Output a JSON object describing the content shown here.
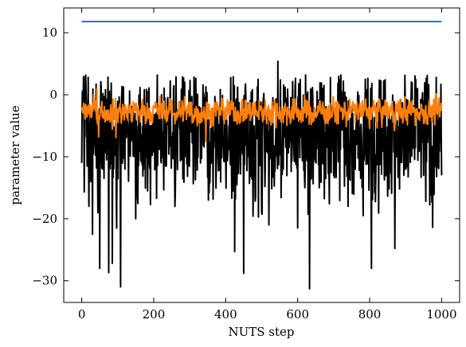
{
  "chart_data": {
    "type": "line",
    "title": "",
    "xlabel": "NUTS step",
    "ylabel": "parameter value",
    "xlim": [
      -50,
      1050
    ],
    "ylim": [
      -33.5,
      14
    ],
    "xticks": [
      0,
      200,
      400,
      600,
      800,
      1000
    ],
    "xtick_labels": [
      "0",
      "200",
      "400",
      "600",
      "800",
      "1000"
    ],
    "yticks": [
      -30,
      -20,
      -10,
      0,
      10
    ],
    "ytick_labels": [
      "−30",
      "−20",
      "−10",
      "0",
      "10"
    ],
    "grid": false,
    "legend": false,
    "series": [
      {
        "color": "#000000",
        "mean": -6,
        "approx_min": -31.3,
        "approx_max": 5.4,
        "points": [
          [
            0,
            -11
          ],
          [
            10,
            2.8
          ],
          [
            20,
            -18
          ],
          [
            25,
            -14
          ],
          [
            30,
            -22.5
          ],
          [
            35,
            -8
          ],
          [
            50,
            -28
          ],
          [
            75,
            -28.7
          ],
          [
            85,
            -27.2
          ],
          [
            95,
            -5
          ],
          [
            108,
            -31
          ],
          [
            120,
            -12
          ],
          [
            150,
            -20
          ],
          [
            175,
            -9
          ],
          [
            205,
            -10
          ],
          [
            230,
            -10
          ],
          [
            260,
            -16
          ],
          [
            330,
            -11
          ],
          [
            360,
            -11
          ],
          [
            400,
            -10
          ],
          [
            425,
            -25.3
          ],
          [
            450,
            -28.8
          ],
          [
            480,
            -13
          ],
          [
            500,
            -19
          ],
          [
            520,
            -21
          ],
          [
            545,
            5.4
          ],
          [
            560,
            -12
          ],
          [
            600,
            -21.5
          ],
          [
            620,
            -15
          ],
          [
            633,
            -31.3
          ],
          [
            660,
            -15
          ],
          [
            700,
            -13
          ],
          [
            740,
            -18
          ],
          [
            760,
            -12
          ],
          [
            805,
            -28
          ],
          [
            840,
            -10
          ],
          [
            870,
            -24.8
          ],
          [
            900,
            -12
          ],
          [
            950,
            -13
          ],
          [
            975,
            -21.4
          ],
          [
            985,
            2.8
          ],
          [
            1000,
            -13
          ]
        ]
      },
      {
        "color": "#ff7f0e",
        "mean": -2.7,
        "approx_min": -7.5,
        "approx_max": 1.0
      },
      {
        "color": "#1f77b4",
        "values_constant": 11.8,
        "x_range": [
          0,
          1000
        ]
      }
    ]
  }
}
